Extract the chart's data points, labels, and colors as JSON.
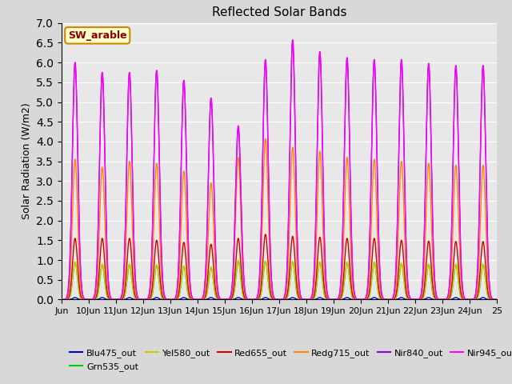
{
  "title": "Reflected Solar Bands",
  "ylabel": "Solar Radiation (W/m2)",
  "xlabel": "",
  "annotation": "SW_arable",
  "ylim": [
    0.0,
    7.0
  ],
  "yticks": [
    0.0,
    0.5,
    1.0,
    1.5,
    2.0,
    2.5,
    3.0,
    3.5,
    4.0,
    4.5,
    5.0,
    5.5,
    6.0,
    6.5,
    7.0
  ],
  "xtick_labels": [
    "Jun",
    "10Jun",
    "11Jun",
    "12Jun",
    "13Jun",
    "14Jun",
    "15Jun",
    "16Jun",
    "17Jun",
    "18Jun",
    "19Jun",
    "20Jun",
    "21Jun",
    "22Jun",
    "23Jun",
    "24Jun",
    "25"
  ],
  "series": {
    "Blu475_out": {
      "color": "#0000cc",
      "lw": 1.0
    },
    "Grn535_out": {
      "color": "#00cc00",
      "lw": 1.0
    },
    "Yel580_out": {
      "color": "#cccc00",
      "lw": 1.0
    },
    "Red655_out": {
      "color": "#cc0000",
      "lw": 1.0
    },
    "Redg715_out": {
      "color": "#ff8800",
      "lw": 1.0
    },
    "Nir840_out": {
      "color": "#8800cc",
      "lw": 1.0
    },
    "Nir945_out": {
      "color": "#ff00ff",
      "lw": 1.0
    }
  },
  "bg_color": "#e8e8e8",
  "grid_color": "#ffffff",
  "num_days": 16,
  "sigma": 0.1,
  "peaks_nir840": [
    6.0,
    5.75,
    5.75,
    5.8,
    5.55,
    5.1,
    4.35,
    6.05,
    6.55,
    6.25,
    6.1,
    6.05,
    6.05,
    5.95,
    5.9,
    5.9
  ],
  "peaks_nir945": [
    6.0,
    5.75,
    5.75,
    5.8,
    5.55,
    5.1,
    4.4,
    6.08,
    6.58,
    6.28,
    6.13,
    6.08,
    6.08,
    5.98,
    5.93,
    5.93
  ],
  "peaks_redg715": [
    3.55,
    3.35,
    3.5,
    3.45,
    3.25,
    2.95,
    3.6,
    4.07,
    3.85,
    3.75,
    3.6,
    3.55,
    3.5,
    3.45,
    3.4,
    3.4
  ],
  "peaks_red655": [
    1.55,
    1.55,
    1.55,
    1.5,
    1.45,
    1.4,
    1.55,
    1.65,
    1.6,
    1.58,
    1.55,
    1.55,
    1.5,
    1.48,
    1.47,
    1.47
  ],
  "peaks_yel580": [
    0.95,
    0.9,
    0.9,
    0.88,
    0.85,
    0.82,
    1.0,
    0.98,
    0.97,
    0.96,
    0.95,
    0.95,
    0.92,
    0.9,
    0.9,
    0.9
  ],
  "peaks_grn535": [
    0.95,
    0.88,
    0.88,
    0.87,
    0.84,
    0.81,
    0.98,
    0.97,
    0.96,
    0.95,
    0.94,
    0.94,
    0.91,
    0.89,
    0.89,
    0.89
  ],
  "peaks_blu475": [
    0.05,
    0.05,
    0.05,
    0.05,
    0.05,
    0.05,
    0.05,
    0.05,
    0.05,
    0.05,
    0.05,
    0.05,
    0.05,
    0.05,
    0.05,
    0.05
  ],
  "figsize": [
    6.4,
    4.8
  ],
  "dpi": 100
}
